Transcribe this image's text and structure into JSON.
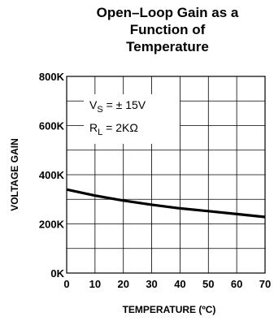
{
  "chart_data": {
    "type": "line",
    "title_lines": [
      "Open–Loop Gain as a",
      "Function of",
      "Temperature"
    ],
    "xlabel": "TEMPERATURE (ºC)",
    "ylabel": "VOLTAGE GAIN",
    "xlim": [
      0,
      70
    ],
    "ylim": [
      0,
      800000
    ],
    "x_ticks": [
      0,
      10,
      20,
      30,
      40,
      50,
      60,
      70
    ],
    "x_tick_labels": [
      "0",
      "10",
      "20",
      "30",
      "40",
      "50",
      "60",
      "70"
    ],
    "y_ticks": [
      0,
      200000,
      400000,
      600000,
      800000
    ],
    "y_tick_labels": [
      "0K",
      "200K",
      "400K",
      "600K",
      "800K"
    ],
    "grid": true,
    "annotation": {
      "vs_prefix": "V",
      "vs_sub": "S",
      "vs_value": " = ± 15V",
      "rl_prefix": "R",
      "rl_sub": "L",
      "rl_value": " = 2KΩ"
    },
    "series": [
      {
        "x": [
          0,
          10,
          20,
          30,
          40,
          50,
          60,
          70
        ],
        "y": [
          340000,
          315000,
          295000,
          278000,
          263000,
          252000,
          240000,
          228000
        ]
      }
    ]
  }
}
